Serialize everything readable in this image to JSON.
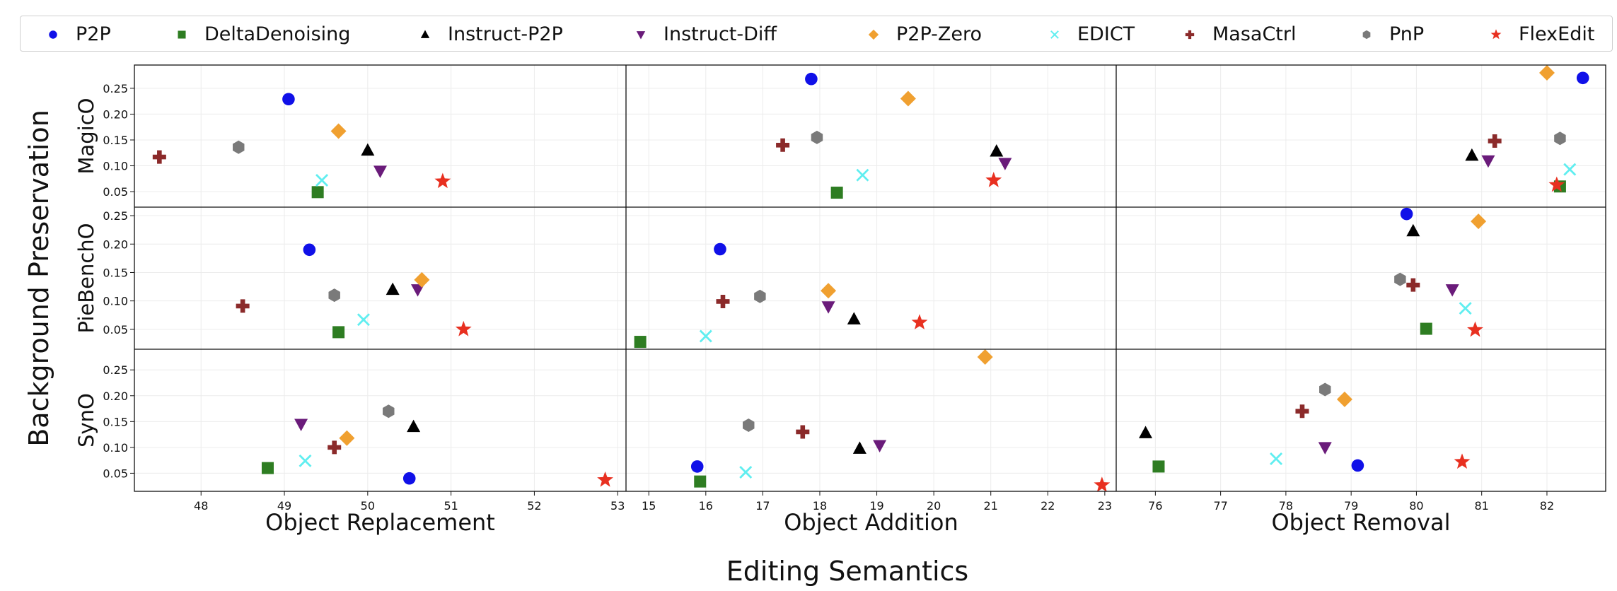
{
  "legend": [
    {
      "name": "P2P",
      "marker": "circle",
      "color": "#1010e8"
    },
    {
      "name": "DeltaDenoising",
      "marker": "square",
      "color": "#2e7d22"
    },
    {
      "name": "Instruct-P2P",
      "marker": "triangle-up",
      "color": "#000000"
    },
    {
      "name": "Instruct-Diff",
      "marker": "triangle-down",
      "color": "#6a1b7a"
    },
    {
      "name": "P2P-Zero",
      "marker": "diamond",
      "color": "#f0a030"
    },
    {
      "name": "EDICT",
      "marker": "x",
      "color": "#60eef0"
    },
    {
      "name": "MasaCtrl",
      "marker": "plus",
      "color": "#8b2a2a"
    },
    {
      "name": "PnP",
      "marker": "hexagon",
      "color": "#7a7a7a"
    },
    {
      "name": "FlexEdit",
      "marker": "star",
      "color": "#e83020"
    }
  ],
  "chart_data": {
    "type": "scatter",
    "xlabel": "Editing Semantics",
    "ylabel": "Background Preservation",
    "grid": true,
    "legend_position": "top",
    "columns": [
      {
        "label": "Object Replacement",
        "xlim": [
          47.2,
          53.1
        ],
        "xticks": [
          48,
          49,
          50,
          51,
          52,
          53
        ]
      },
      {
        "label": "Object Addition",
        "xlim": [
          14.6,
          23.2
        ],
        "xticks": [
          15,
          16,
          17,
          18,
          19,
          20,
          21,
          22,
          23
        ]
      },
      {
        "label": "Object Removal",
        "xlim": [
          75.4,
          82.9
        ],
        "xticks": [
          76,
          77,
          78,
          79,
          80,
          81,
          82
        ]
      }
    ],
    "rows": [
      {
        "label": "MagicO",
        "ylim": [
          0.02,
          0.295
        ],
        "yticks": [
          0.05,
          0.1,
          0.15,
          0.2,
          0.25
        ]
      },
      {
        "label": "PieBenchO",
        "ylim": [
          0.015,
          0.265
        ],
        "yticks": [
          0.05,
          0.1,
          0.15,
          0.2,
          0.25
        ]
      },
      {
        "label": "SynO",
        "ylim": [
          0.015,
          0.29
        ],
        "yticks": [
          0.05,
          0.1,
          0.15,
          0.2,
          0.25
        ]
      }
    ],
    "yticklabels": [
      "0.05",
      "0.10",
      "0.15",
      "0.20",
      "0.25"
    ],
    "panels": [
      {
        "row": "MagicO",
        "column": "Object Replacement",
        "points": {
          "P2P": [
            49.05,
            0.229
          ],
          "DeltaDenoising": [
            49.4,
            0.049
          ],
          "Instruct-P2P": [
            50.0,
            0.13
          ],
          "Instruct-Diff": [
            50.15,
            0.09
          ],
          "P2P-Zero": [
            49.65,
            0.167
          ],
          "EDICT": [
            49.45,
            0.072
          ],
          "MasaCtrl": [
            47.5,
            0.117
          ],
          "PnP": [
            48.45,
            0.136
          ],
          "FlexEdit": [
            50.9,
            0.07
          ]
        }
      },
      {
        "row": "MagicO",
        "column": "Object Addition",
        "points": {
          "P2P": [
            17.85,
            0.268
          ],
          "DeltaDenoising": [
            18.3,
            0.048
          ],
          "Instruct-P2P": [
            21.1,
            0.128
          ],
          "Instruct-Diff": [
            21.25,
            0.105
          ],
          "P2P-Zero": [
            19.55,
            0.23
          ],
          "EDICT": [
            18.75,
            0.082
          ],
          "MasaCtrl": [
            17.35,
            0.14
          ],
          "PnP": [
            17.95,
            0.155
          ],
          "FlexEdit": [
            21.05,
            0.072
          ]
        }
      },
      {
        "row": "MagicO",
        "column": "Object Removal",
        "points": {
          "P2P": [
            82.55,
            0.27
          ],
          "DeltaDenoising": [
            82.2,
            0.06
          ],
          "Instruct-P2P": [
            80.85,
            0.12
          ],
          "Instruct-Diff": [
            81.1,
            0.11
          ],
          "P2P-Zero": [
            82.0,
            0.28
          ],
          "EDICT": [
            82.35,
            0.093
          ],
          "MasaCtrl": [
            81.2,
            0.148
          ],
          "PnP": [
            82.2,
            0.153
          ],
          "FlexEdit": [
            82.15,
            0.063
          ]
        }
      },
      {
        "row": "PieBenchO",
        "column": "Object Replacement",
        "points": {
          "P2P": [
            49.3,
            0.19
          ],
          "DeltaDenoising": [
            49.65,
            0.045
          ],
          "Instruct-P2P": [
            50.3,
            0.12
          ],
          "Instruct-Diff": [
            50.6,
            0.12
          ],
          "P2P-Zero": [
            50.65,
            0.137
          ],
          "EDICT": [
            49.95,
            0.067
          ],
          "MasaCtrl": [
            48.5,
            0.091
          ],
          "PnP": [
            49.6,
            0.11
          ],
          "FlexEdit": [
            51.15,
            0.05
          ]
        }
      },
      {
        "row": "PieBenchO",
        "column": "Object Addition",
        "points": {
          "P2P": [
            16.25,
            0.191
          ],
          "DeltaDenoising": [
            14.85,
            0.028
          ],
          "Instruct-P2P": [
            18.6,
            0.068
          ],
          "Instruct-Diff": [
            18.15,
            0.09
          ],
          "P2P-Zero": [
            18.15,
            0.118
          ],
          "EDICT": [
            16.0,
            0.038
          ],
          "MasaCtrl": [
            16.3,
            0.099
          ],
          "PnP": [
            16.95,
            0.108
          ],
          "FlexEdit": [
            19.75,
            0.062
          ]
        }
      },
      {
        "row": "PieBenchO",
        "column": "Object Removal",
        "points": {
          "P2P": [
            79.85,
            0.253
          ],
          "DeltaDenoising": [
            80.15,
            0.051
          ],
          "Instruct-P2P": [
            79.95,
            0.223
          ],
          "Instruct-Diff": [
            80.55,
            0.12
          ],
          "P2P-Zero": [
            80.95,
            0.24
          ],
          "EDICT": [
            80.75,
            0.087
          ],
          "MasaCtrl": [
            79.95,
            0.128
          ],
          "PnP": [
            79.75,
            0.138
          ],
          "FlexEdit": [
            80.9,
            0.049
          ]
        }
      },
      {
        "row": "SynO",
        "column": "Object Replacement",
        "points": {
          "P2P": [
            50.5,
            0.04
          ],
          "DeltaDenoising": [
            48.8,
            0.06
          ],
          "Instruct-P2P": [
            50.55,
            0.14
          ],
          "Instruct-Diff": [
            49.2,
            0.145
          ],
          "P2P-Zero": [
            49.75,
            0.118
          ],
          "EDICT": [
            49.25,
            0.074
          ],
          "MasaCtrl": [
            49.6,
            0.1
          ],
          "PnP": [
            50.25,
            0.17
          ],
          "FlexEdit": [
            52.85,
            0.037
          ]
        }
      },
      {
        "row": "SynO",
        "column": "Object Addition",
        "points": {
          "P2P": [
            15.85,
            0.063
          ],
          "DeltaDenoising": [
            15.9,
            0.034
          ],
          "Instruct-P2P": [
            18.7,
            0.098
          ],
          "Instruct-Diff": [
            19.05,
            0.104
          ],
          "P2P-Zero": [
            20.9,
            0.275
          ],
          "EDICT": [
            16.7,
            0.052
          ],
          "MasaCtrl": [
            17.7,
            0.13
          ],
          "PnP": [
            16.75,
            0.143
          ],
          "FlexEdit": [
            22.95,
            0.027
          ]
        }
      },
      {
        "row": "SynO",
        "column": "Object Removal",
        "points": {
          "P2P": [
            79.1,
            0.065
          ],
          "DeltaDenoising": [
            76.05,
            0.063
          ],
          "Instruct-P2P": [
            75.85,
            0.128
          ],
          "Instruct-Diff": [
            78.6,
            0.1
          ],
          "P2P-Zero": [
            78.9,
            0.193
          ],
          "EDICT": [
            77.85,
            0.078
          ],
          "MasaCtrl": [
            78.25,
            0.17
          ],
          "PnP": [
            78.6,
            0.212
          ],
          "FlexEdit": [
            80.7,
            0.072
          ]
        }
      }
    ]
  }
}
